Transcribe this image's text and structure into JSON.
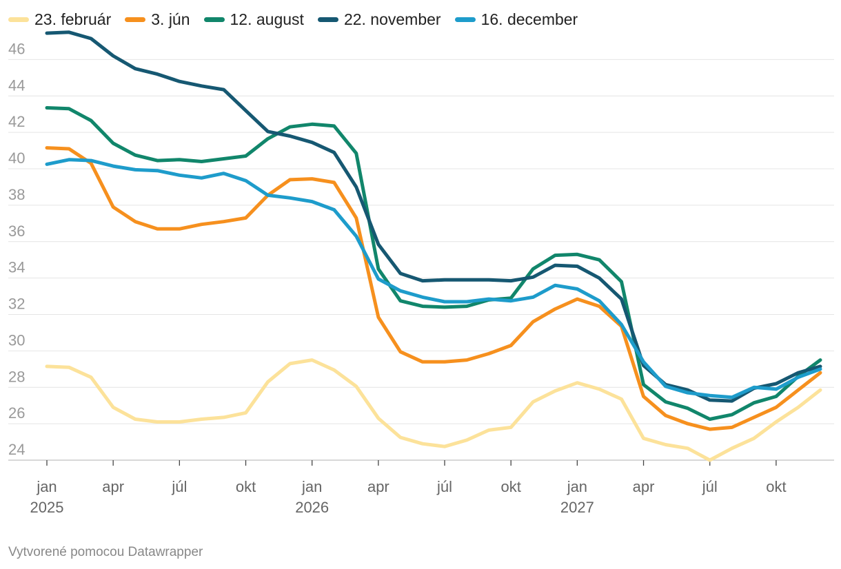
{
  "chart_data": {
    "type": "line",
    "title": "",
    "xlabel": "",
    "ylabel": "",
    "ylim": [
      24,
      47
    ],
    "y_ticks": [
      24,
      26,
      28,
      30,
      32,
      34,
      36,
      38,
      40,
      42,
      44,
      46
    ],
    "y_tick_labels": [
      "24",
      "26",
      "28",
      "30",
      "32",
      "34",
      "36",
      "38",
      "40",
      "42",
      "44",
      "46"
    ],
    "grid": true,
    "legend_position": "top-left",
    "x_tick_months": [
      0,
      3,
      6,
      9,
      12,
      15,
      18,
      21,
      24,
      27,
      30,
      33
    ],
    "x_tick_labels": [
      {
        "month": "jan",
        "year": "2025"
      },
      {
        "month": "apr",
        "year": ""
      },
      {
        "month": "júl",
        "year": ""
      },
      {
        "month": "okt",
        "year": ""
      },
      {
        "month": "jan",
        "year": "2026"
      },
      {
        "month": "apr",
        "year": ""
      },
      {
        "month": "júl",
        "year": ""
      },
      {
        "month": "okt",
        "year": ""
      },
      {
        "month": "jan",
        "year": "2027"
      },
      {
        "month": "apr",
        "year": ""
      },
      {
        "month": "júl",
        "year": ""
      },
      {
        "month": "okt",
        "year": ""
      }
    ],
    "x": [
      0,
      1,
      2,
      3,
      4,
      5,
      6,
      7,
      8,
      9,
      10,
      11,
      12,
      13,
      14,
      15,
      16,
      17,
      18,
      19,
      20,
      21,
      22,
      23,
      24,
      25,
      26,
      27,
      28,
      29,
      30,
      31,
      32,
      33,
      34,
      35
    ],
    "series": [
      {
        "name": "23. február",
        "color": "#fce29a",
        "values": [
          29.15,
          29.1,
          28.55,
          26.9,
          26.25,
          26.1,
          26.1,
          26.25,
          26.35,
          26.6,
          28.3,
          29.3,
          29.5,
          28.95,
          28.05,
          26.3,
          25.25,
          24.9,
          24.75,
          25.1,
          25.65,
          25.8,
          27.2,
          27.8,
          28.25,
          27.9,
          27.35,
          25.2,
          24.85,
          24.65,
          24.0,
          24.65,
          25.2,
          26.1,
          26.9,
          27.85
        ]
      },
      {
        "name": "3. jún",
        "color": "#f6901e",
        "values": [
          41.15,
          41.1,
          40.3,
          37.9,
          37.1,
          36.7,
          36.7,
          36.95,
          37.1,
          37.3,
          38.55,
          39.4,
          39.45,
          39.25,
          37.3,
          31.85,
          29.95,
          29.4,
          29.4,
          29.5,
          29.85,
          30.3,
          31.6,
          32.3,
          32.85,
          32.45,
          31.35,
          27.5,
          26.45,
          26.0,
          25.7,
          25.8,
          26.35,
          26.9,
          27.85,
          28.8
        ]
      },
      {
        "name": "12. august",
        "color": "#11866b",
        "values": [
          43.35,
          43.3,
          42.65,
          41.4,
          40.75,
          40.45,
          40.5,
          40.4,
          40.55,
          40.7,
          41.65,
          42.3,
          42.45,
          42.35,
          40.85,
          34.5,
          32.75,
          32.45,
          32.4,
          32.45,
          32.8,
          32.9,
          34.5,
          35.25,
          35.3,
          35.0,
          33.8,
          28.15,
          27.2,
          26.85,
          26.25,
          26.5,
          27.15,
          27.5,
          28.6,
          29.5
        ]
      },
      {
        "name": "22. november",
        "color": "#165872",
        "values": [
          47.45,
          47.5,
          47.15,
          46.2,
          45.5,
          45.2,
          44.8,
          44.55,
          44.35,
          43.2,
          42.05,
          41.8,
          41.45,
          40.9,
          39.0,
          35.85,
          34.25,
          33.85,
          33.9,
          33.9,
          33.9,
          33.85,
          34.05,
          34.7,
          34.65,
          34.0,
          32.85,
          29.2,
          28.15,
          27.85,
          27.3,
          27.25,
          27.95,
          28.2,
          28.8,
          29.15
        ]
      },
      {
        "name": "16. december",
        "color": "#1e9ccb",
        "values": [
          40.25,
          40.5,
          40.45,
          40.15,
          39.95,
          39.9,
          39.65,
          39.5,
          39.75,
          39.35,
          38.55,
          38.4,
          38.2,
          37.75,
          36.3,
          33.95,
          33.3,
          32.95,
          32.7,
          32.7,
          32.85,
          32.75,
          32.95,
          33.6,
          33.4,
          32.75,
          31.45,
          29.4,
          28.05,
          27.7,
          27.55,
          27.45,
          28.0,
          27.9,
          28.55,
          29.0
        ]
      }
    ]
  },
  "footer": {
    "credit": "Vytvorené pomocou Datawrapper"
  }
}
